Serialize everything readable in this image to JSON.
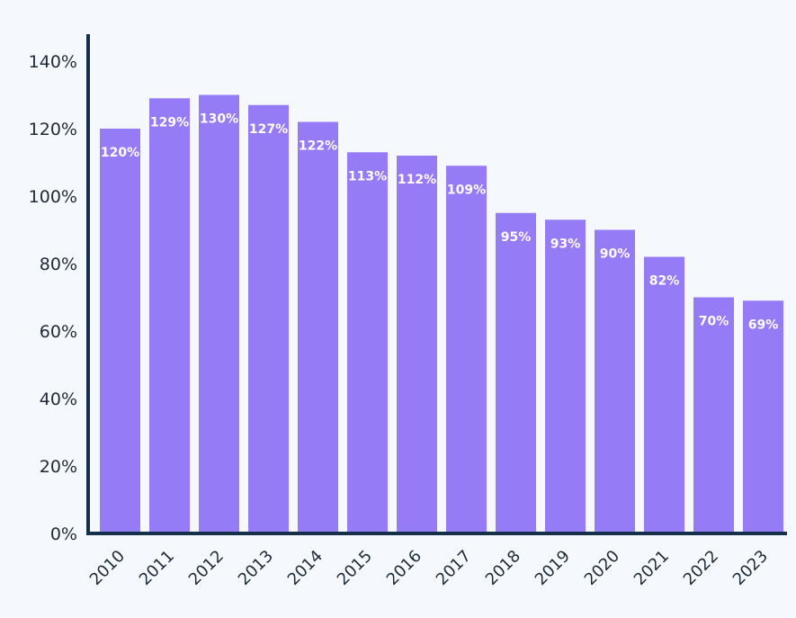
{
  "chart_data": {
    "type": "bar",
    "title": "",
    "xlabel": "",
    "ylabel": "",
    "categories": [
      "2010",
      "2011",
      "2012",
      "2013",
      "2014",
      "2015",
      "2016",
      "2017",
      "2018",
      "2019",
      "2020",
      "2021",
      "2022",
      "2023"
    ],
    "values": [
      120,
      129,
      130,
      127,
      122,
      113,
      112,
      109,
      95,
      93,
      90,
      82,
      70,
      69
    ],
    "data_labels": [
      "120%",
      "129%",
      "130%",
      "127%",
      "122%",
      "113%",
      "112%",
      "109%",
      "95%",
      "93%",
      "90%",
      "82%",
      "70%",
      "69%"
    ],
    "ylim": [
      0,
      148
    ],
    "yticks": [
      0,
      20,
      40,
      60,
      80,
      100,
      120,
      140
    ],
    "ytick_labels": [
      "0%",
      "20%",
      "40%",
      "60%",
      "80%",
      "100%",
      "120%",
      "140%"
    ],
    "grid": false,
    "legend": "none",
    "bar_color": "#967bf6",
    "axis_color": "#14304a"
  }
}
